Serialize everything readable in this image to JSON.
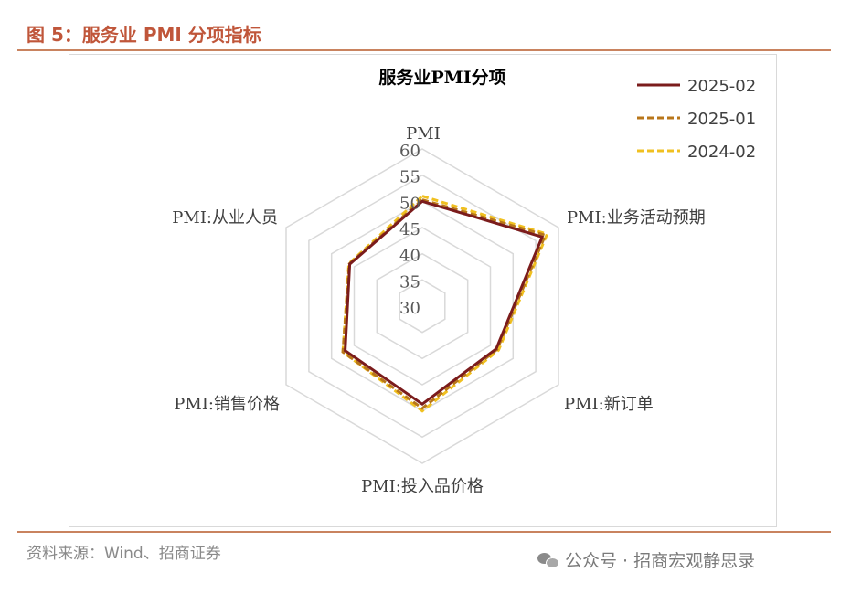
{
  "figure": {
    "title": "图 5：服务业 PMI 分项指标"
  },
  "source": {
    "text": "资料来源：Wind、招商证券"
  },
  "watermark": {
    "text": "公众号 · 招商宏观静思录",
    "icon": "wechat-icon"
  },
  "chart_data": {
    "type": "radar",
    "title": "服务业PMI分项",
    "axes": [
      "PMI",
      "PMI:业务活动预期",
      "PMI:新订单",
      "PMI:投入品价格",
      "PMI:销售价格",
      "PMI:从业人员"
    ],
    "rlim": [
      30,
      60
    ],
    "ticks": [
      "60",
      "55",
      "50",
      "45",
      "40",
      "35",
      "30"
    ],
    "tick_values": [
      60,
      55,
      50,
      45,
      40,
      35,
      30
    ],
    "grid": true,
    "legend": "top-right",
    "series": [
      {
        "name": "2025-02",
        "color": "#7b1c1c",
        "dash": "solid",
        "values": [
          50.0,
          56.4,
          46.3,
          48.7,
          47.0,
          46.0
        ]
      },
      {
        "name": "2025-01",
        "color": "#b8761a",
        "dash": "dashed",
        "values": [
          50.3,
          57.1,
          46.5,
          49.5,
          47.5,
          46.1
        ]
      },
      {
        "name": "2024-02",
        "color": "#f0c020",
        "dash": "dashed",
        "values": [
          51.0,
          57.5,
          46.8,
          50.0,
          47.5,
          46.2
        ]
      }
    ]
  }
}
